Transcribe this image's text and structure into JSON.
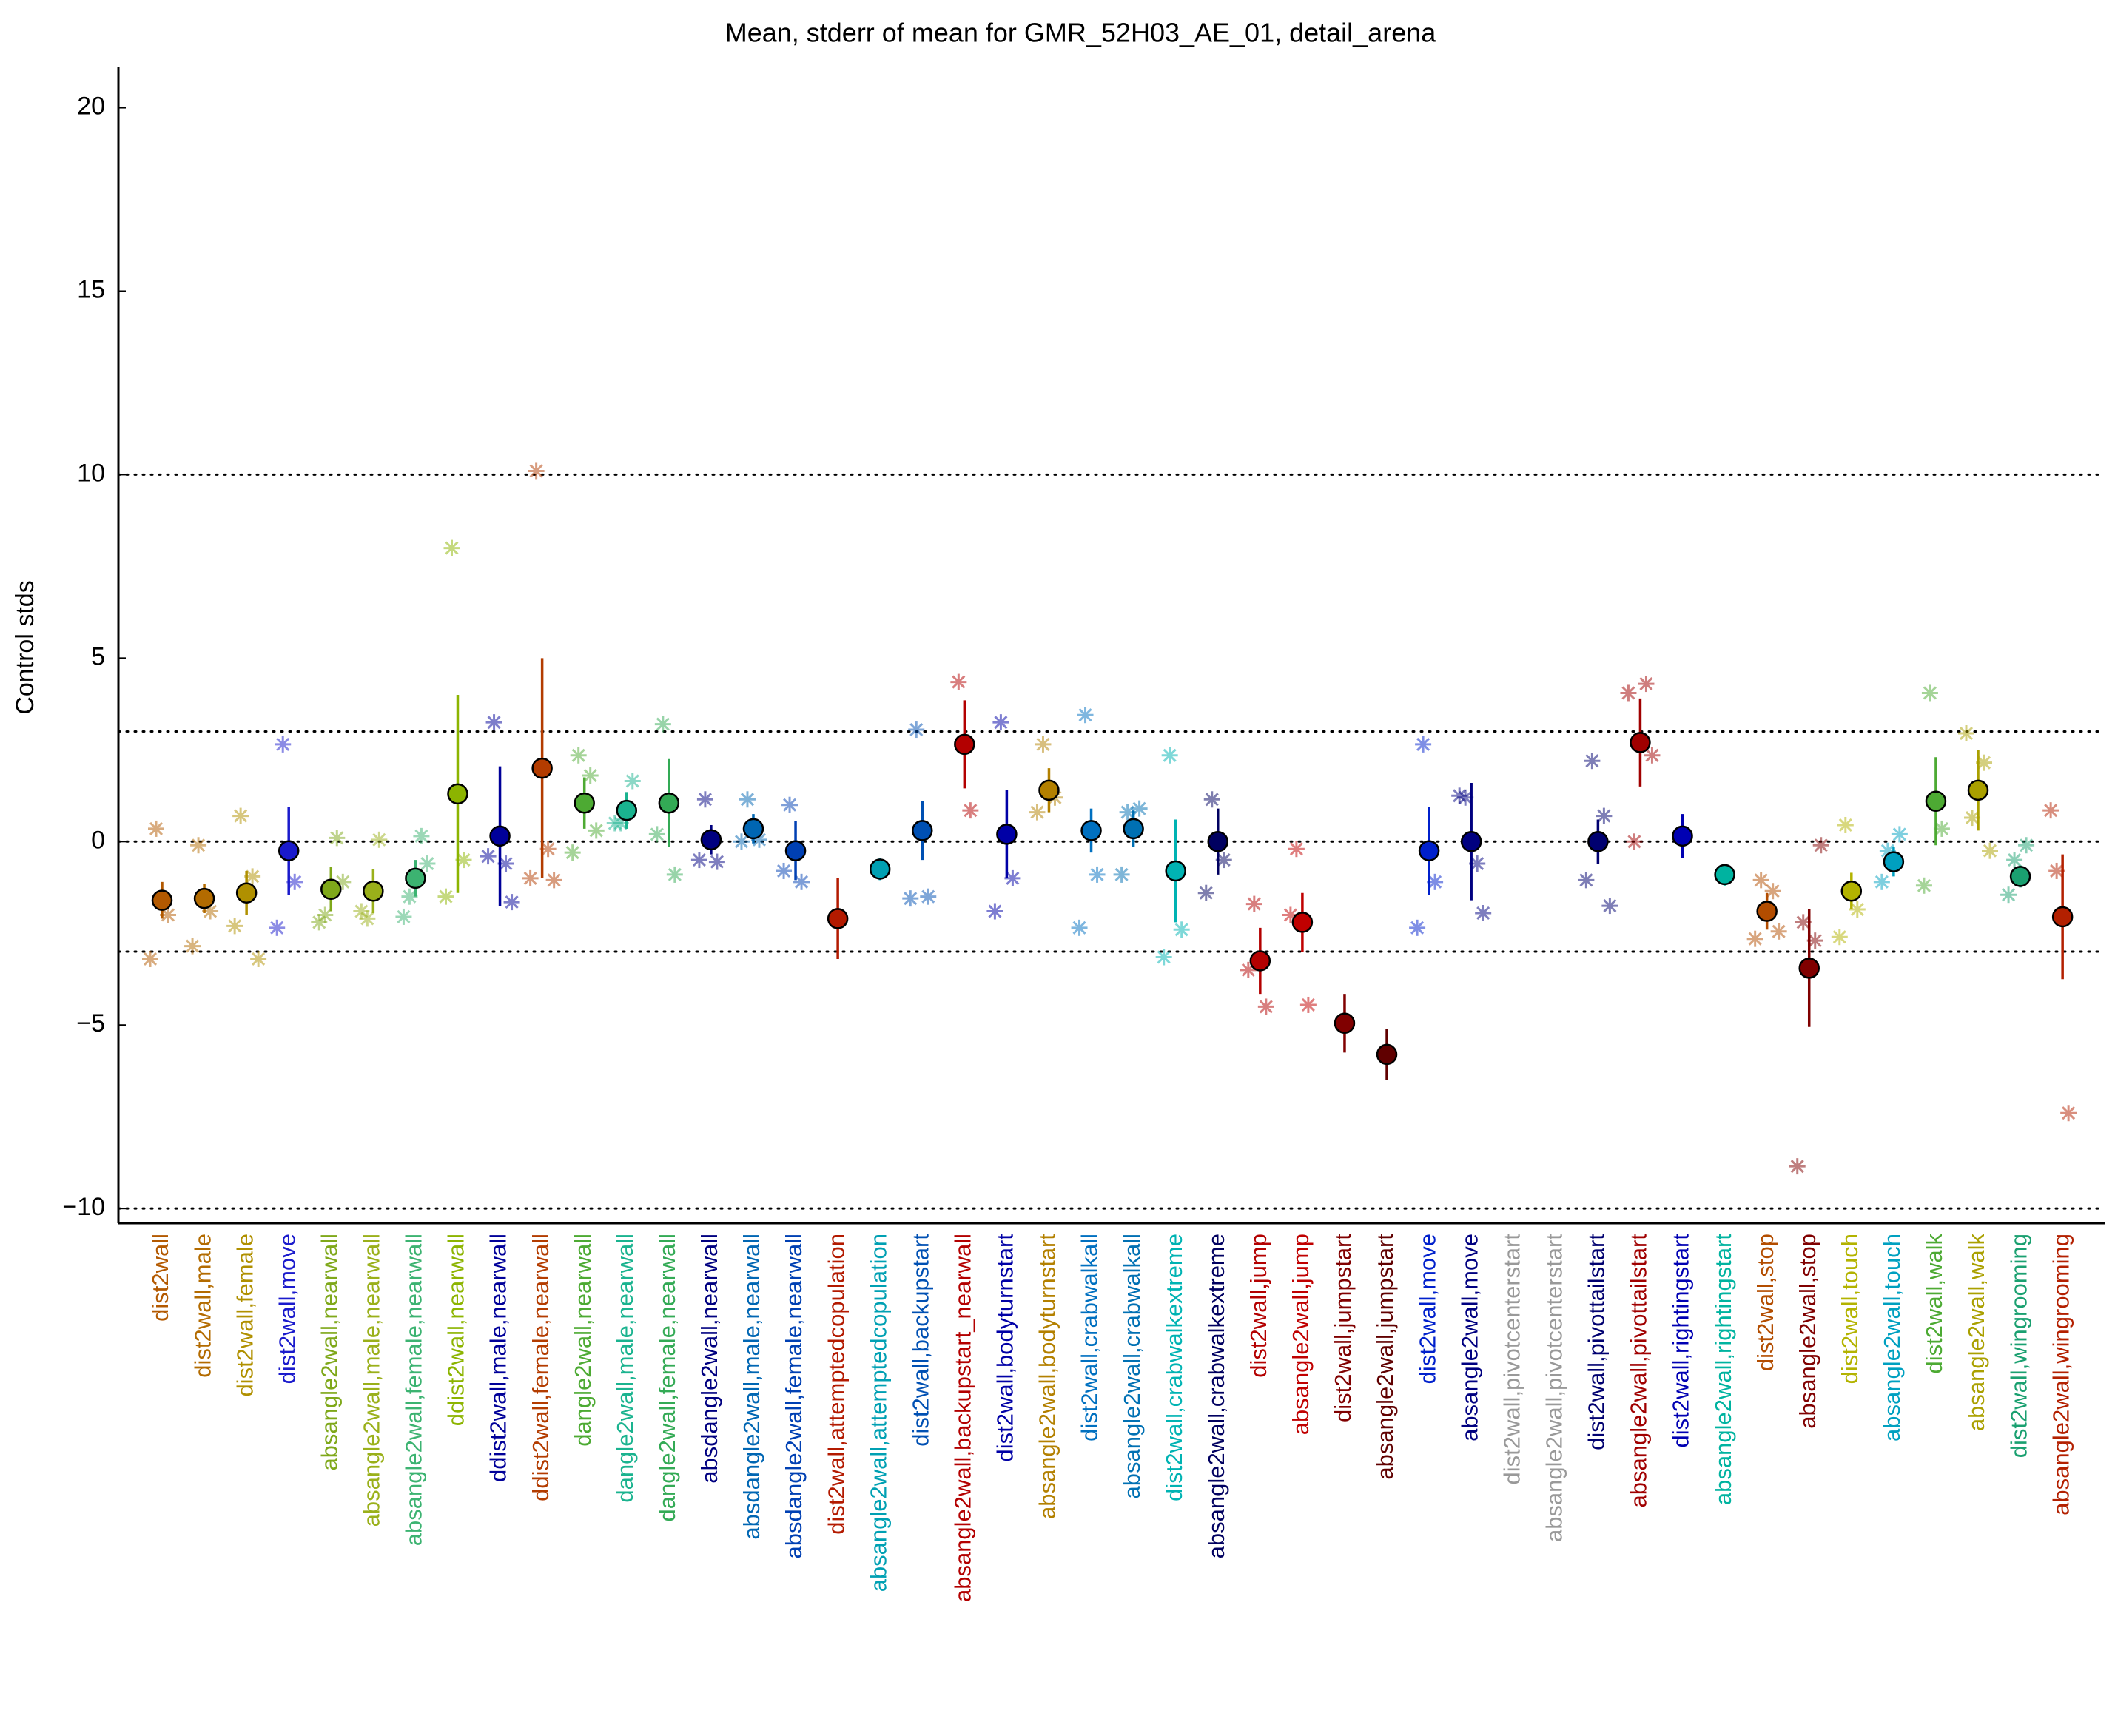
{
  "chart_data": {
    "type": "errorbar",
    "title": "Mean, stderr of mean for GMR_52H03_AE_01, detail_arena",
    "ylabel": "Control stds",
    "ylim": [
      -10.4,
      21.1
    ],
    "yticks": [
      {
        "value": -10,
        "label": "−10"
      },
      {
        "value": -5,
        "label": "−5"
      },
      0,
      5,
      10,
      15,
      20
    ],
    "reference_lines": [
      -10,
      -3,
      0,
      3,
      10
    ],
    "categories": [
      "dist2wall",
      "dist2wall,male",
      "dist2wall,female",
      "dist2wall,move",
      "absangle2wall,nearwall",
      "absangle2wall,male,nearwall",
      "absangle2wall,female,nearwall",
      "ddist2wall,nearwall",
      "ddist2wall,male,nearwall",
      "ddist2wall,female,nearwall",
      "dangle2wall,nearwall",
      "dangle2wall,male,nearwall",
      "dangle2wall,female,nearwall",
      "absdangle2wall,nearwall",
      "absdangle2wall,male,nearwall",
      "absdangle2wall,female,nearwall",
      "dist2wall,attemptedcopulation",
      "absangle2wall,attemptedcopulation",
      "dist2wall,backupstart",
      "absangle2wall,backupstart_nearwall",
      "dist2wall,bodyturnstart",
      "absangle2wall,bodyturnstart",
      "dist2wall,crabwalkall",
      "absangle2wall,crabwalkall",
      "dist2wall,crabwalkextreme",
      "absangle2wall,crabwalkextreme",
      "dist2wall,jump",
      "absangle2wall,jump",
      "dist2wall,jumpstart",
      "absangle2wall,jumpstart",
      "dist2wall,move",
      "absangle2wall,move",
      "dist2wall,pivotcenterstart",
      "absangle2wall,pivotcenterstart",
      "dist2wall,pivottailstart",
      "absangle2wall,pivottailstart",
      "dist2wall,rightingstart",
      "absangle2wall,rightingstart",
      "dist2wall,stop",
      "absangle2wall,stop",
      "dist2wall,touch",
      "absangle2wall,touch",
      "dist2wall,walk",
      "absangle2wall,walk",
      "dist2wall,wingrooming",
      "absangle2wall,wingrooming"
    ],
    "colors": [
      "#b35900",
      "#b36b00",
      "#b09000",
      "#1a1acc",
      "#7fa81a",
      "#9ab01a",
      "#3cb371",
      "#8cb400",
      "#000099",
      "#b33c00",
      "#4daa33",
      "#1ab38f",
      "#33aa55",
      "#000080",
      "#0066b3",
      "#0040b3",
      "#b31a00",
      "#00a0b3",
      "#0050b3",
      "#b30000",
      "#0000a6",
      "#b38000",
      "#0070c0",
      "#0070b3",
      "#00b3b3",
      "#000060",
      "#b30000",
      "#c00000",
      "#800000",
      "#600000",
      "#0020cc",
      "#000080",
      "#999999",
      "#999999",
      "#000070",
      "#a00000",
      "#0000b3",
      "#00b3a0",
      "#b34d00",
      "#800000",
      "#b3b300",
      "#00a0c0",
      "#4daa33",
      "#aaa000",
      "#1aa070",
      "#b32000"
    ],
    "values": [
      -1.6,
      -1.55,
      -1.4,
      -0.25,
      -1.3,
      -1.35,
      -1.0,
      1.3,
      0.15,
      2.0,
      1.05,
      0.85,
      1.05,
      0.05,
      0.35,
      -0.25,
      -2.1,
      -0.75,
      0.3,
      2.65,
      0.2,
      1.4,
      0.3,
      0.35,
      -0.8,
      0.0,
      -3.25,
      -2.2,
      -4.95,
      -5.8,
      -0.25,
      0.0,
      null,
      null,
      0.0,
      2.7,
      0.15,
      -0.9,
      -1.9,
      -3.45,
      -1.35,
      -0.55,
      1.1,
      1.4,
      -0.95,
      -2.05
    ],
    "errors": [
      0.5,
      0.4,
      0.6,
      1.2,
      0.6,
      0.6,
      0.5,
      2.7,
      1.9,
      3.0,
      0.7,
      0.5,
      1.2,
      0.4,
      0.4,
      0.8,
      1.1,
      0.3,
      0.8,
      1.2,
      1.2,
      0.6,
      0.6,
      0.5,
      1.4,
      0.9,
      0.9,
      0.8,
      0.8,
      0.7,
      1.2,
      1.6,
      null,
      null,
      0.6,
      1.2,
      0.6,
      0.3,
      0.5,
      1.6,
      0.5,
      0.4,
      1.2,
      1.1,
      0.3,
      1.7
    ],
    "replicates": [
      [
        0.35,
        -2.0,
        -3.2
      ],
      [
        -0.1,
        -1.9,
        -2.85
      ],
      [
        0.7,
        -0.95,
        -2.3,
        -3.2
      ],
      [
        2.65,
        -1.1,
        -2.35
      ],
      [
        -2.0,
        0.1,
        -2.2,
        -1.1
      ],
      [
        -2.1,
        0.05,
        -1.9
      ],
      [
        -1.5,
        0.15,
        -2.05,
        -0.6
      ],
      [
        8.0,
        -0.5,
        -1.5
      ],
      [
        3.25,
        -0.6,
        -0.4,
        -1.65
      ],
      [
        10.1,
        -0.2,
        -1.0,
        -1.05
      ],
      [
        2.35,
        1.8,
        -0.3,
        0.3
      ],
      [
        0.5,
        1.65,
        0.5
      ],
      [
        3.2,
        -0.9,
        0.2
      ],
      [
        1.15,
        -0.55,
        -0.5
      ],
      [
        1.15,
        0.05,
        0.0
      ],
      [
        1.0,
        -1.1,
        -0.8
      ],
      [],
      [],
      [
        3.05,
        -1.5,
        -1.55
      ],
      [
        4.35,
        0.85
      ],
      [
        3.25,
        -1.0,
        -1.9
      ],
      [
        2.65,
        1.2,
        0.8
      ],
      [
        3.45,
        -0.9,
        -2.35
      ],
      [
        0.8,
        0.9,
        -0.9
      ],
      [
        2.35,
        -2.4,
        -3.15
      ],
      [
        1.15,
        -0.5,
        -1.4
      ],
      [
        -1.7,
        -4.5,
        -3.5
      ],
      [
        -0.2,
        -4.45,
        -2.0
      ],
      [],
      [],
      [
        2.65,
        -1.1,
        -2.35
      ],
      [
        1.2,
        -0.6,
        1.25,
        -1.95
      ],
      [],
      [],
      [
        2.2,
        0.7,
        -1.05,
        -1.75
      ],
      [
        0.0,
        4.3,
        4.05,
        2.35
      ],
      [],
      [],
      [
        -1.05,
        -1.35,
        -2.65,
        -2.45
      ],
      [
        -2.2,
        -2.7,
        -8.85,
        -0.1
      ],
      [
        0.45,
        -1.85,
        -2.6
      ],
      [
        -0.25,
        0.2,
        -1.1
      ],
      [
        4.05,
        0.35,
        -1.2
      ],
      [
        0.65,
        2.15,
        2.95,
        -0.25
      ],
      [
        -0.5,
        -0.1,
        -1.45
      ],
      [
        -0.8,
        -7.4,
        0.85
      ]
    ]
  }
}
